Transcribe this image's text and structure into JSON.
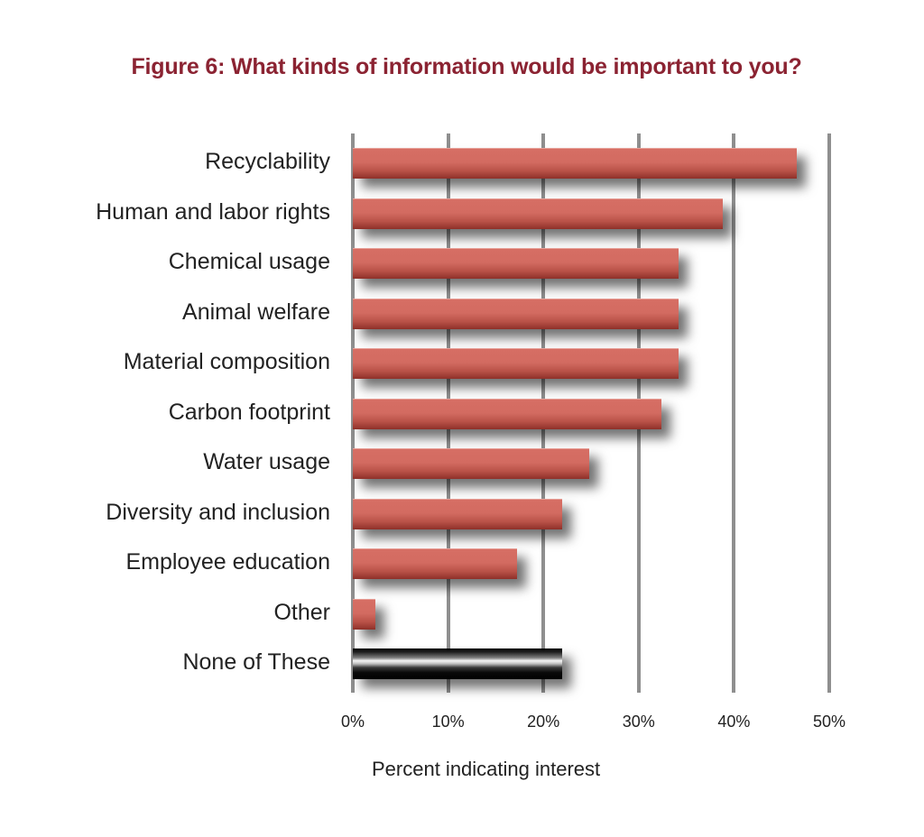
{
  "title": "Figure 6: What kinds of information would be important to you?",
  "colors": {
    "title": "#8b2332",
    "bar": "#d36b61",
    "bar_dark": "#8e3029",
    "highlight_bar": "#000000",
    "grid": "#8f8f8f"
  },
  "chart_data": {
    "type": "bar",
    "orientation": "horizontal",
    "title": "Figure 6: What kinds of information would be important to you?",
    "xlabel": "Percent indicating interest",
    "ylabel": "",
    "xlim": [
      0,
      50
    ],
    "x_ticks": [
      "0%",
      "10%",
      "20%",
      "30%",
      "40%",
      "50%"
    ],
    "grid": "vertical",
    "legend": "none",
    "categories": [
      "Recyclability",
      "Human and labor rights",
      "Chemical usage",
      "Animal welfare",
      "Material composition",
      "Carbon footprint",
      "Water usage",
      "Diversity and inclusion",
      "Employee education",
      "Other",
      "None of These"
    ],
    "values": [
      46.6,
      38.8,
      34.2,
      34.2,
      34.2,
      32.4,
      24.8,
      22.0,
      17.2,
      2.4,
      22.0
    ],
    "highlighted": [
      "None of These"
    ]
  },
  "axis": {
    "xlabel": "Percent indicating interest",
    "ticks": [
      "0%",
      "10%",
      "20%",
      "30%",
      "40%",
      "50%"
    ]
  }
}
